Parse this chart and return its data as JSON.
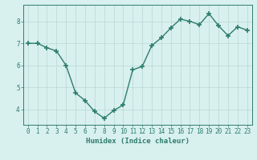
{
  "x": [
    0,
    1,
    2,
    3,
    4,
    5,
    6,
    7,
    8,
    9,
    10,
    11,
    12,
    13,
    14,
    15,
    16,
    17,
    18,
    19,
    20,
    21,
    22,
    23
  ],
  "y": [
    7.0,
    7.0,
    6.8,
    6.65,
    6.0,
    4.75,
    4.4,
    3.9,
    3.6,
    3.95,
    4.2,
    5.8,
    5.95,
    6.9,
    7.25,
    7.7,
    8.1,
    8.0,
    7.85,
    8.35,
    7.8,
    7.35,
    7.75,
    7.6
  ],
  "line_color": "#2e7d6e",
  "marker": "+",
  "markersize": 4,
  "markeredgewidth": 1.2,
  "bg_color": "#d8f0ee",
  "grid_color": "#b8d8d4",
  "axis_color": "#2e7d6e",
  "xlabel": "Humidex (Indice chaleur)",
  "xlim": [
    -0.5,
    23.5
  ],
  "ylim": [
    3.3,
    8.75
  ],
  "yticks": [
    4,
    5,
    6,
    7,
    8
  ],
  "xticks": [
    0,
    1,
    2,
    3,
    4,
    5,
    6,
    7,
    8,
    9,
    10,
    11,
    12,
    13,
    14,
    15,
    16,
    17,
    18,
    19,
    20,
    21,
    22,
    23
  ],
  "xlabel_fontsize": 6.5,
  "tick_fontsize": 5.5,
  "linewidth": 1.0
}
